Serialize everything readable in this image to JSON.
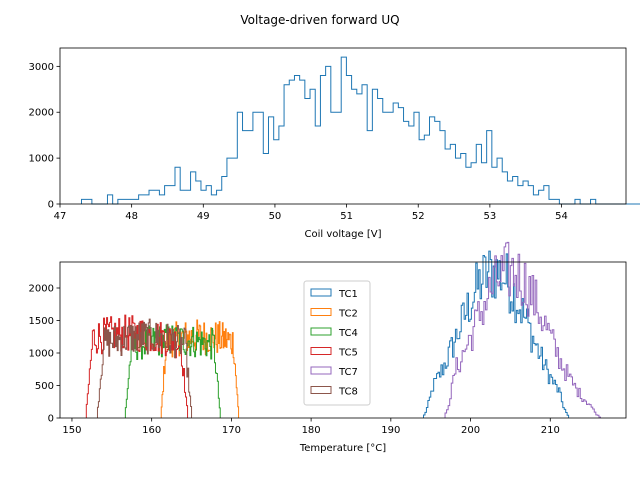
{
  "figure": {
    "title": "Voltage-driven forward UQ"
  },
  "chart_data": [
    {
      "type": "histogram",
      "xlabel": "Coil voltage [V]",
      "ylabel": "",
      "xlim": [
        47.0,
        54.9
      ],
      "ylim": [
        0,
        3400
      ],
      "xticks": [
        47,
        48,
        49,
        50,
        51,
        52,
        53,
        54
      ],
      "yticks": [
        0,
        1000,
        2000,
        3000
      ],
      "grid": false,
      "series": [
        {
          "color": "#1f77b4",
          "bin_start": 47.3,
          "bin_width": 0.0725,
          "values": [
            100,
            100,
            0,
            0,
            0,
            200,
            0,
            100,
            100,
            100,
            100,
            200,
            200,
            300,
            300,
            200,
            400,
            400,
            800,
            300,
            300,
            700,
            500,
            300,
            400,
            200,
            300,
            600,
            1000,
            1000,
            2000,
            1600,
            1600,
            2000,
            2000,
            1100,
            1900,
            1400,
            1700,
            2600,
            2700,
            2800,
            2700,
            2300,
            2500,
            1700,
            2800,
            3000,
            2000,
            2000,
            3200,
            2800,
            2500,
            2400,
            2600,
            1600,
            2500,
            2300,
            2000,
            2000,
            2200,
            2100,
            1800,
            1700,
            2000,
            1400,
            1500,
            1900,
            1800,
            1600,
            1200,
            1300,
            1000,
            1100,
            800,
            900,
            1300,
            900,
            1600,
            800,
            1000,
            700,
            500,
            600,
            400,
            500,
            400,
            200,
            300,
            400,
            100,
            100,
            0,
            0,
            0,
            100,
            0,
            0,
            100,
            0,
            0,
            0,
            0,
            0,
            0,
            0,
            0,
            0,
            0,
            0,
            0,
            0,
            0,
            0,
            0,
            0,
            0,
            0,
            0,
            100,
            100
          ]
        }
      ]
    },
    {
      "type": "histogram",
      "xlabel": "Temperature [°C]",
      "ylabel": "",
      "xlim": [
        148.5,
        219.5
      ],
      "ylim": [
        0,
        2400
      ],
      "xticks": [
        150,
        160,
        170,
        180,
        190,
        200,
        210
      ],
      "yticks": [
        0,
        500,
        1000,
        1500,
        2000
      ],
      "grid": false,
      "legend": "upper-center",
      "series": [
        {
          "name": "TC1",
          "color": "#1f77b4",
          "range": [
            194.1,
            212.3
          ],
          "peak": 2250,
          "center": 203,
          "spread": 4.4
        },
        {
          "name": "TC2",
          "color": "#ff7f0e",
          "range": [
            161.2,
            170.9
          ],
          "peak": 1250,
          "center": 166,
          "spread": 7
        },
        {
          "name": "TC4",
          "color": "#2ca02c",
          "range": [
            156.7,
            168.6
          ],
          "peak": 1200,
          "center": 163,
          "spread": 8
        },
        {
          "name": "TC5",
          "color": "#d62728",
          "range": [
            151.8,
            164.5
          ],
          "peak": 1300,
          "center": 157,
          "spread": 8
        },
        {
          "name": "TC7",
          "color": "#9467bd",
          "range": [
            196.8,
            216.3
          ],
          "peak": 2250,
          "center": 205,
          "spread": 4.6
        },
        {
          "name": "TC8",
          "color": "#8c564b",
          "range": [
            153.2,
            165.0
          ],
          "peak": 1250,
          "center": 159,
          "spread": 7
        }
      ]
    }
  ]
}
